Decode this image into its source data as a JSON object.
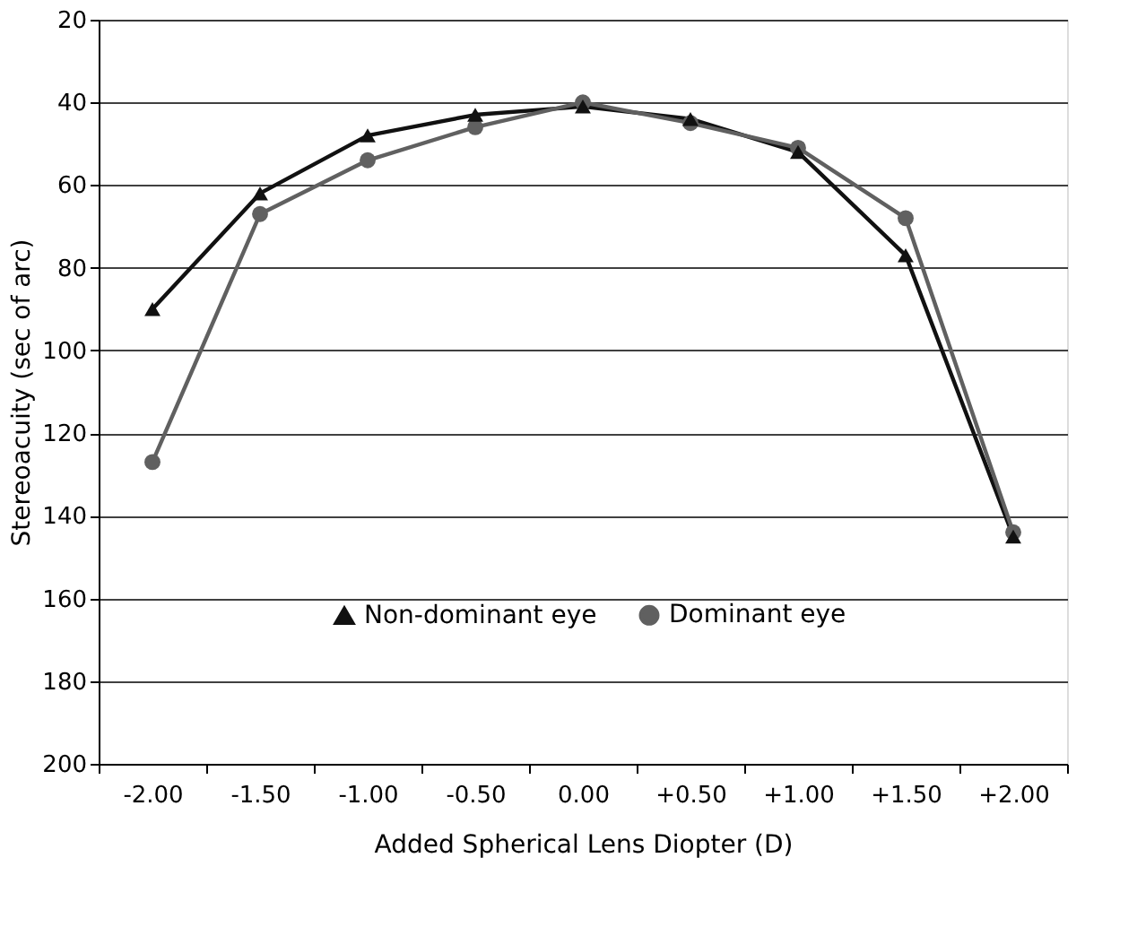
{
  "chart_data": {
    "type": "line",
    "xlabel": "Added Spherical Lens Diopter (D)",
    "ylabel": "Stereoacuity (sec of arc)",
    "categories": [
      "-2.00",
      "-1.50",
      "-1.00",
      "-0.50",
      "0.00",
      "+0.50",
      "+1.00",
      "+1.50",
      "+2.00"
    ],
    "series": [
      {
        "name": "Non-dominant eye",
        "color": "#111111",
        "marker": "triangle",
        "values": [
          90,
          62,
          48,
          43,
          41,
          44,
          52,
          77,
          145
        ]
      },
      {
        "name": "Dominant eye",
        "color": "#606060",
        "marker": "circle",
        "values": [
          127,
          67,
          54,
          46,
          40,
          45,
          51,
          68,
          144
        ]
      }
    ],
    "ylim": [
      200,
      20
    ],
    "yticks": [
      20,
      40,
      60,
      80,
      100,
      120,
      140,
      160,
      180,
      200
    ],
    "grid": "y",
    "legend": "bottom",
    "line_style": "solid"
  }
}
